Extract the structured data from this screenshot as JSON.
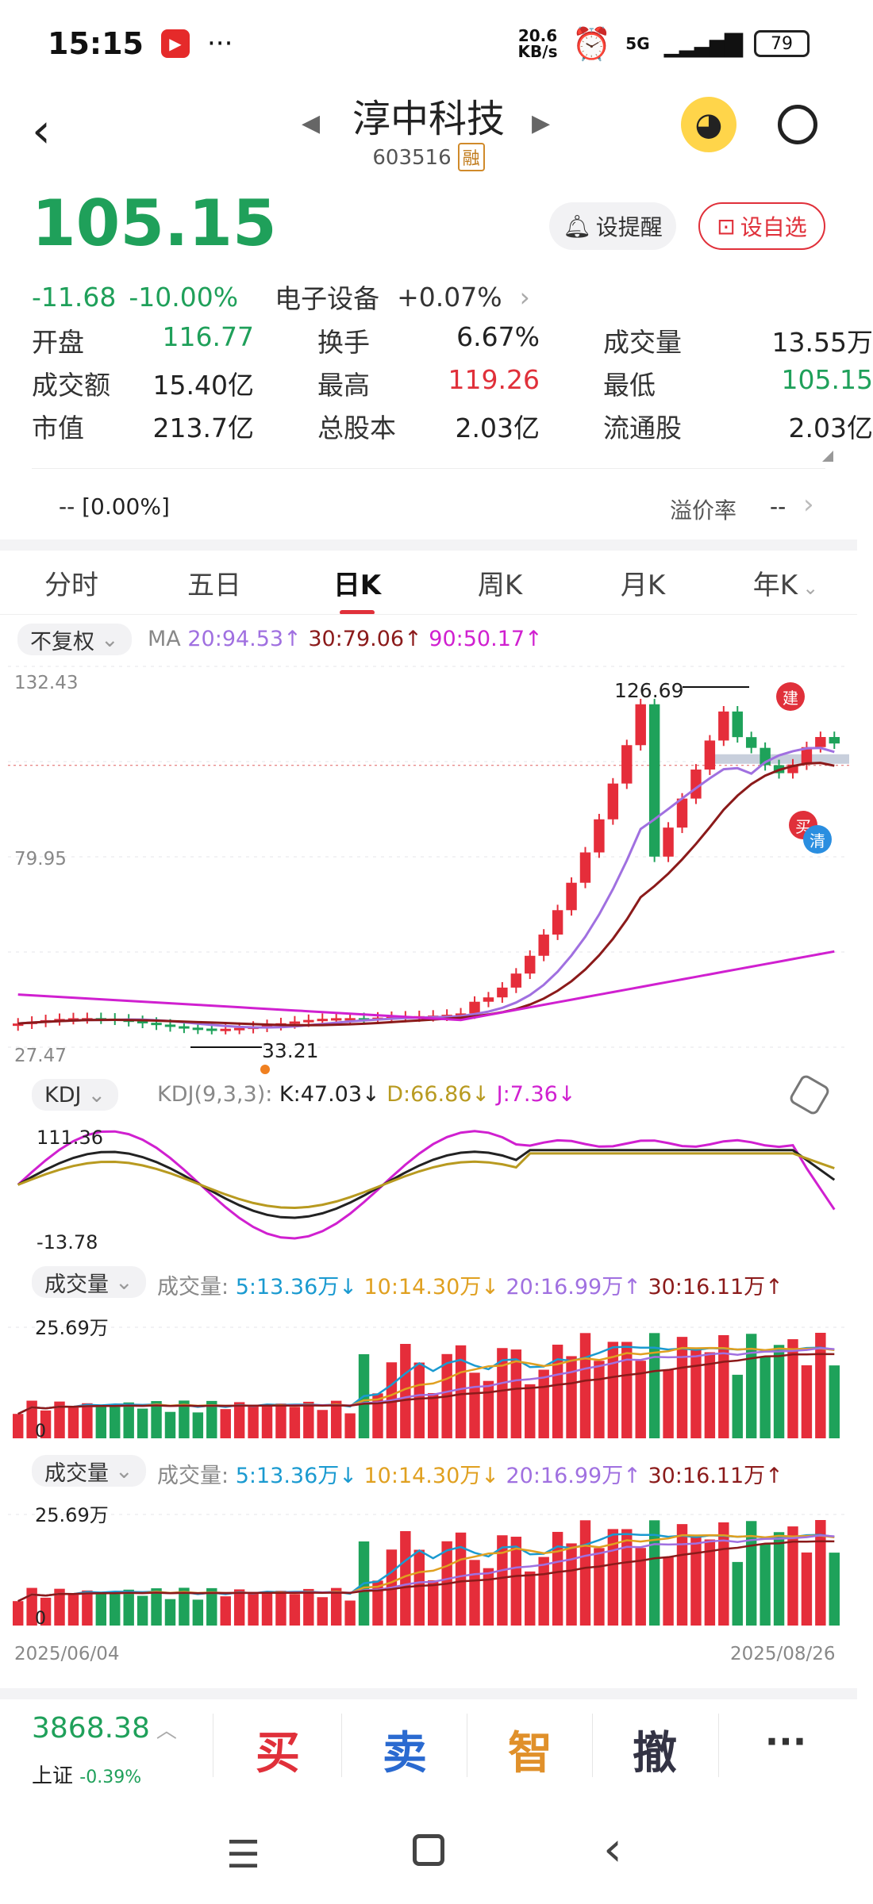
{
  "status": {
    "time": "15:15",
    "net": "20.6\nKB/s",
    "net_top": "20.6",
    "net_bot": "KB/s",
    "signal": "5G",
    "battery": "79"
  },
  "stock": {
    "name": "淳中科技",
    "code": "603516",
    "tag": "融",
    "price": "105.15",
    "change": "-11.68",
    "pct": "-10.00%",
    "sector": "电子设备",
    "sector_pct": "+0.07%"
  },
  "actions": {
    "alert": "设提醒",
    "watch": "设自选"
  },
  "quote": [
    [
      {
        "l": "开盘",
        "v": "116.77",
        "c": "green"
      },
      {
        "l": "换手",
        "v": "6.67%",
        "c": ""
      },
      {
        "l": "成交量",
        "v": "13.55万",
        "c": ""
      }
    ],
    [
      {
        "l": "成交额",
        "v": "15.40亿",
        "c": ""
      },
      {
        "l": "最高",
        "v": "119.26",
        "c": "red"
      },
      {
        "l": "最低",
        "v": "105.15",
        "c": "green"
      }
    ],
    [
      {
        "l": "市值",
        "v": "213.7亿",
        "c": ""
      },
      {
        "l": "总股本",
        "v": "2.03亿",
        "c": ""
      },
      {
        "l": "流通股",
        "v": "2.03亿",
        "c": ""
      }
    ]
  ],
  "premium": {
    "left": "--  [0.00%]",
    "label": "溢价率",
    "value": "--"
  },
  "tabs": [
    "分时",
    "五日",
    "日K",
    "周K",
    "月K",
    "年K"
  ],
  "kline": {
    "adjust": "不复权",
    "ma_label": "MA",
    "ma20": "20:94.53↑",
    "ma30": "30:79.06↑",
    "ma90": "90:50.17↑",
    "y_top": "132.43",
    "y_mid": "79.95",
    "y_bot": "27.47",
    "high_mark": "126.69",
    "low_mark": "33.21",
    "tag_jian": "建",
    "tag_mai": "买",
    "tag_qing": "清",
    "colors": {
      "up": "#e52d3a",
      "down": "#1ea25a",
      "ma20": "#a070e0",
      "ma30": "#8b1a1a",
      "ma90": "#d020d0"
    }
  },
  "kdj": {
    "chip": "KDJ",
    "params": "KDJ(9,3,3):",
    "k": "K:47.03↓",
    "d": "D:66.86↓",
    "j": "J:7.36↓",
    "y_top": "111.36",
    "y_bot": "-13.78"
  },
  "vol1": {
    "chip": "成交量",
    "label": "成交量:",
    "m5": "5:13.36万↓",
    "m10": "10:14.30万↓",
    "m20": "20:16.99万↑",
    "m30": "30:16.11万↑",
    "y_top": "25.69万",
    "y_bot": "0"
  },
  "vol2": {
    "chip": "成交量",
    "label": "成交量:",
    "m5": "5:13.36万↓",
    "m10": "10:14.30万↓",
    "m20": "20:16.99万↑",
    "m30": "30:16.11万↑",
    "y_top": "25.69万",
    "y_bot": "0"
  },
  "dates": {
    "start": "2025/06/04",
    "end": "2025/08/26"
  },
  "bottom": {
    "index_val": "3868.38",
    "index_name": "上证",
    "index_pct": "-0.39%",
    "buy": "买",
    "sell": "卖",
    "smart": "智",
    "cancel": "撤",
    "more": "···"
  },
  "chart_data": {
    "type": "candlestick",
    "x": [
      "2025/06/04",
      "2025/08/26"
    ],
    "ylim": [
      27.47,
      132.43
    ],
    "high": 126.69,
    "low": 33.21,
    "last": 105.15,
    "ma": {
      "ma20": 94.53,
      "ma30": 79.06,
      "ma90": 50.17
    },
    "kdj": {
      "k": 47.03,
      "d": 66.86,
      "j": 7.36,
      "ylim": [
        -13.78,
        111.36
      ]
    },
    "volume_max": "25.69万"
  }
}
